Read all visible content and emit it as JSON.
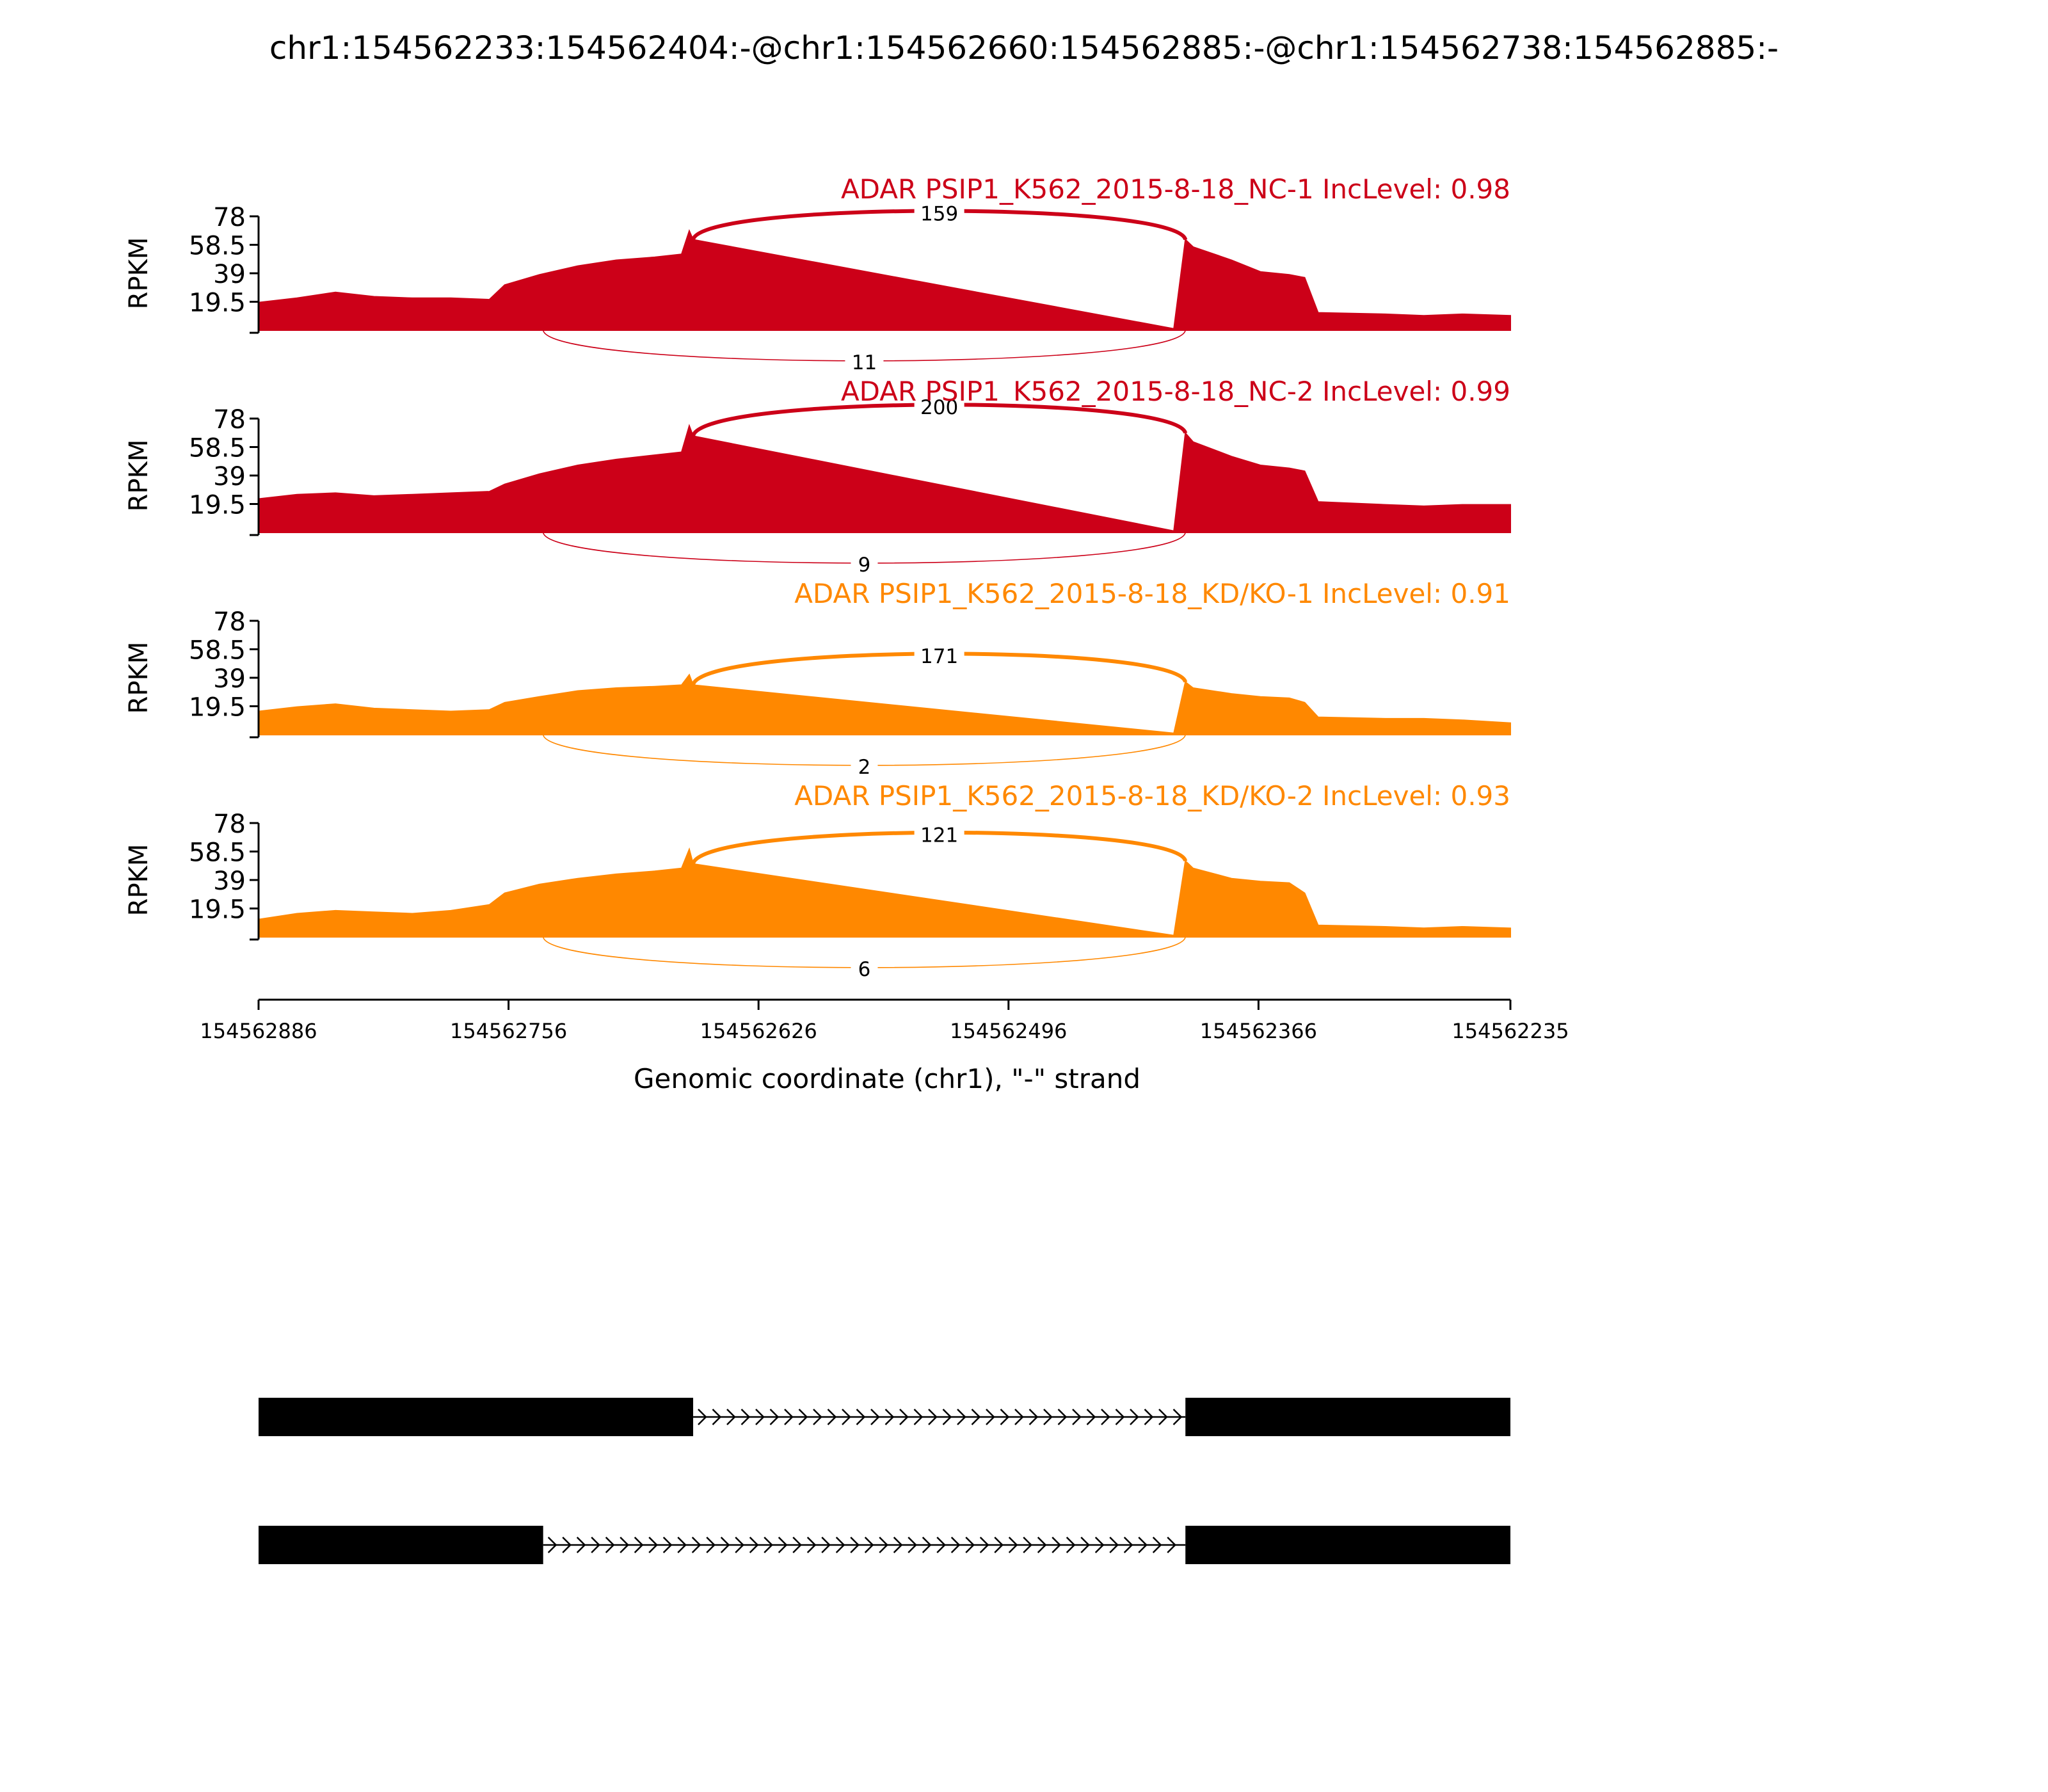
{
  "title": "chr1:154562233:154562404:-@chr1:154562660:154562885:-@chr1:154562738:154562885:-",
  "colors": {
    "nc": "#cc0018",
    "kd": "#ff8800",
    "axis": "#000000",
    "exon": "#000000"
  },
  "chart_data": {
    "type": "area",
    "subtype": "sashimi",
    "xlabel": "Genomic coordinate (chr1), \"-\" strand",
    "ylabel": "RPKM",
    "x_reversed": true,
    "xlim": [
      154562886,
      154562235
    ],
    "xticks": [
      "154562886",
      "154562756",
      "154562626",
      "154562496",
      "154562366",
      "154562235"
    ],
    "xtick_values": [
      154562886,
      154562756,
      154562626,
      154562496,
      154562366,
      154562235
    ],
    "ylim": [
      0,
      78
    ],
    "yticks": [
      "19.5",
      "39",
      "58.5",
      "78"
    ],
    "ytick_values": [
      19.5,
      39,
      58.5,
      78
    ],
    "coverage_x": [
      154562886,
      154562866,
      154562846,
      154562826,
      154562806,
      154562786,
      154562766,
      154562758,
      154562740,
      154562720,
      154562700,
      154562680,
      154562666,
      154562662,
      154562660,
      154562410,
      154562404,
      154562400,
      154562380,
      154562365,
      154562350,
      154562342,
      154562335,
      154562300,
      154562280,
      154562260,
      154562235
    ],
    "series": [
      {
        "name": "ADAR PSIP1_K562_2015-8-18_NC-1 IncLevel: 0.98",
        "group": "nc",
        "coverage": [
          19,
          22,
          26,
          23,
          22,
          22,
          21,
          31,
          38,
          44,
          48,
          50,
          52,
          68,
          62,
          1,
          62,
          57,
          48,
          40,
          38,
          36,
          12,
          11,
          10,
          11,
          10
        ],
        "junctions": [
          {
            "from": 154562660,
            "to": 154562404,
            "count": "159",
            "side": "top"
          },
          {
            "from": 154562738,
            "to": 154562404,
            "count": "11",
            "side": "bottom"
          }
        ]
      },
      {
        "name": "ADAR PSIP1_K562_2015-8-18_NC-2 IncLevel: 0.99",
        "group": "nc",
        "coverage": [
          23,
          26,
          27,
          25,
          26,
          27,
          28,
          33,
          40,
          46,
          50,
          53,
          55,
          73,
          66,
          1,
          68,
          62,
          52,
          46,
          44,
          42,
          21,
          19,
          18,
          19,
          19
        ],
        "junctions": [
          {
            "from": 154562660,
            "to": 154562404,
            "count": "200",
            "side": "top"
          },
          {
            "from": 154562738,
            "to": 154562404,
            "count": "9",
            "side": "bottom"
          }
        ]
      },
      {
        "name": "ADAR PSIP1_K562_2015-8-18_KD/KO-1 IncLevel: 0.91",
        "group": "kd",
        "coverage": [
          16,
          19,
          21,
          18,
          17,
          16,
          17,
          22,
          26,
          30,
          32,
          33,
          34,
          41,
          34,
          1,
          36,
          32,
          28,
          26,
          25,
          22,
          12,
          11,
          11,
          10,
          8
        ],
        "junctions": [
          {
            "from": 154562660,
            "to": 154562404,
            "count": "171",
            "side": "top"
          },
          {
            "from": 154562738,
            "to": 154562404,
            "count": "2",
            "side": "bottom"
          }
        ]
      },
      {
        "name": "ADAR PSIP1_K562_2015-8-18_KD/KO-2 IncLevel: 0.93",
        "group": "kd",
        "coverage": [
          12,
          16,
          18,
          17,
          16,
          18,
          22,
          30,
          36,
          40,
          43,
          45,
          47,
          60,
          50,
          1,
          52,
          47,
          40,
          38,
          37,
          30,
          8,
          7,
          6,
          7,
          6
        ],
        "junctions": [
          {
            "from": 154562660,
            "to": 154562404,
            "count": "121",
            "side": "top"
          },
          {
            "from": 154562738,
            "to": 154562404,
            "count": "6",
            "side": "bottom"
          }
        ]
      }
    ],
    "isoforms": [
      {
        "exons": [
          [
            154562886,
            154562660
          ],
          [
            154562404,
            154562233
          ]
        ]
      },
      {
        "exons": [
          [
            154562886,
            154562738
          ],
          [
            154562404,
            154562233
          ]
        ]
      }
    ]
  }
}
